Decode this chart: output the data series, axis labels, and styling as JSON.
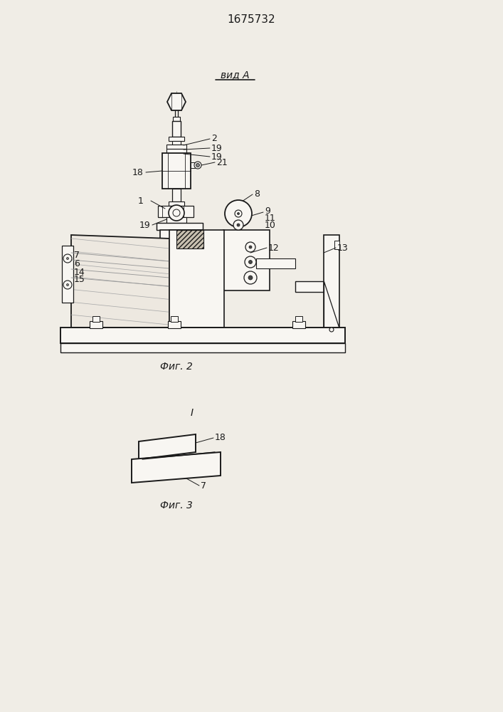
{
  "title": "1675732",
  "fig2_label": "Фиг. 2",
  "fig3_label": "Фиг. 3",
  "vid_label": "вид A",
  "bg_color": "#f0ede6",
  "line_color": "#1a1a1a",
  "fill_light": "#f5f2ec",
  "fill_white": "#f8f6f2",
  "font_title": 11,
  "font_label": 10,
  "font_num": 9
}
